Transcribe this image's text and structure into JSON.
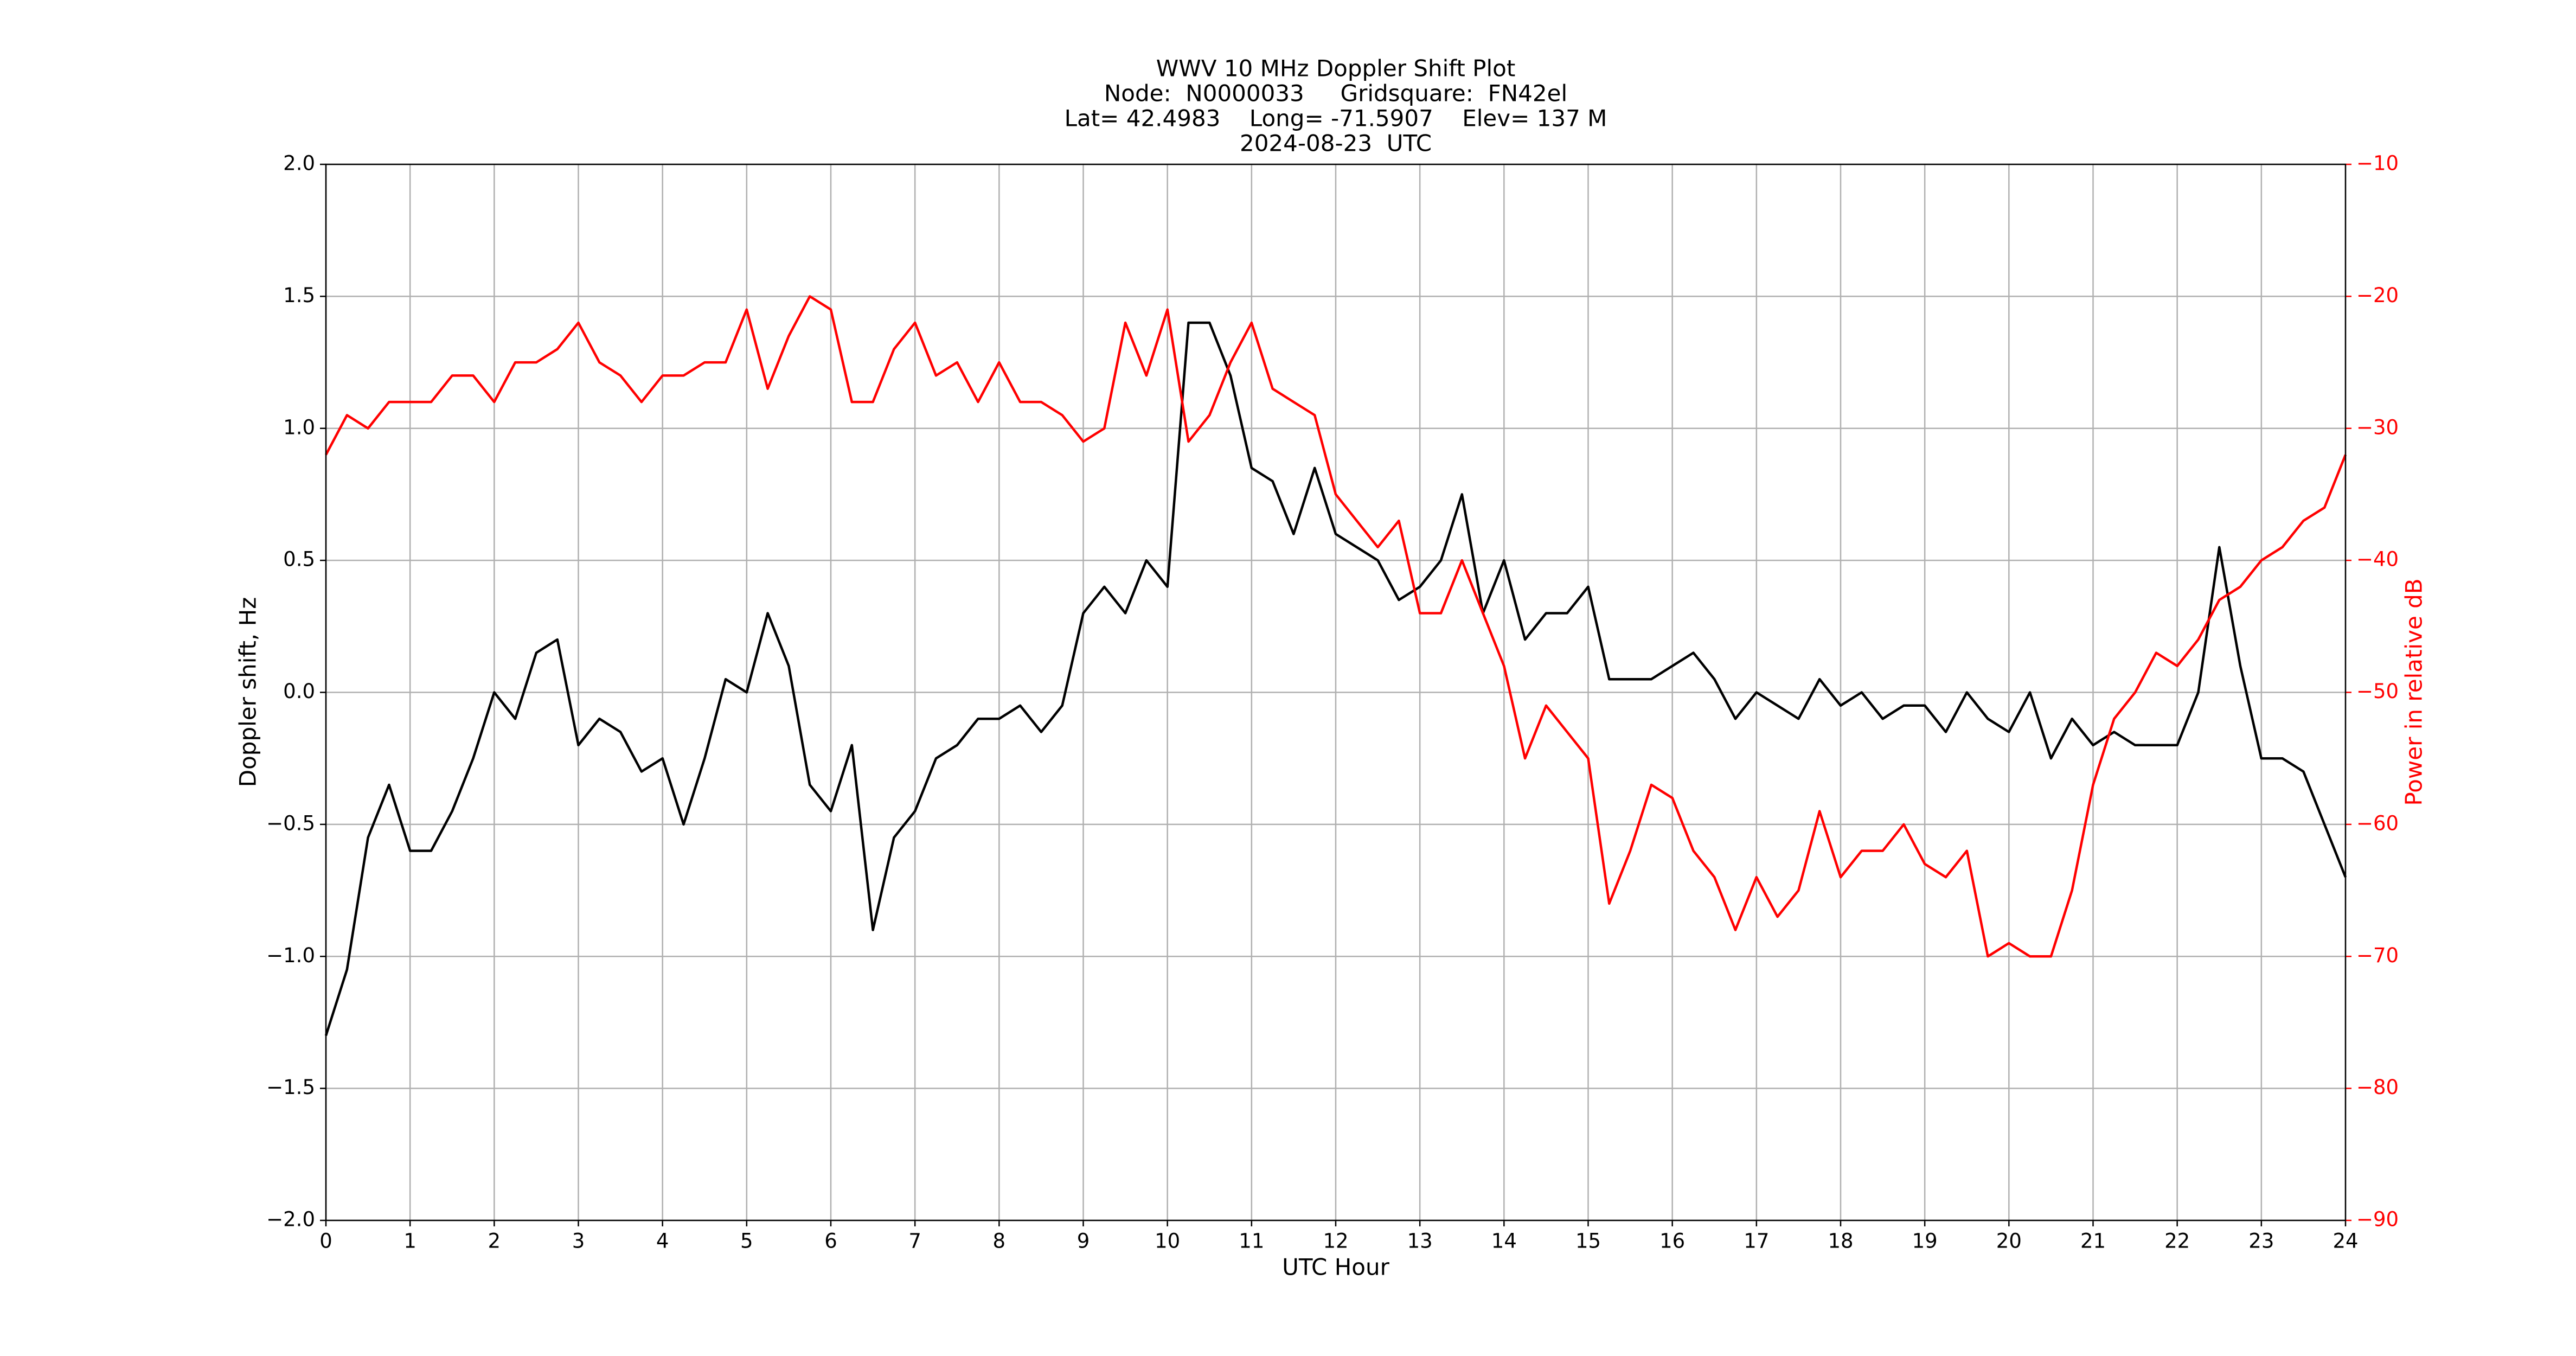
{
  "chart_data": {
    "type": "line",
    "title": [
      "WWV 10 MHz Doppler Shift Plot",
      "Node:  N0000033     Gridsquare:  FN42el",
      "Lat= 42.4983    Long= -71.5907    Elev= 137 M",
      "2024-08-23  UTC"
    ],
    "xlabel": "UTC Hour",
    "ylabel": "Doppler shift, Hz",
    "y2label": "Power in relative dB",
    "x": [
      0,
      0.25,
      0.5,
      0.75,
      1,
      1.25,
      1.5,
      1.75,
      2,
      2.25,
      2.5,
      2.75,
      3,
      3.25,
      3.5,
      3.75,
      4,
      4.25,
      4.5,
      4.75,
      5,
      5.25,
      5.5,
      5.75,
      6,
      6.25,
      6.5,
      6.75,
      7,
      7.25,
      7.5,
      7.75,
      8,
      8.25,
      8.5,
      8.75,
      9,
      9.25,
      9.5,
      9.75,
      10,
      10.25,
      10.5,
      10.75,
      11,
      11.25,
      11.5,
      11.75,
      12,
      12.25,
      12.5,
      12.75,
      13,
      13.25,
      13.5,
      13.75,
      14,
      14.25,
      14.5,
      14.75,
      15,
      15.25,
      15.5,
      15.75,
      16,
      16.25,
      16.5,
      16.75,
      17,
      17.25,
      17.5,
      17.75,
      18,
      18.25,
      18.5,
      18.75,
      19,
      19.25,
      19.5,
      19.75,
      20,
      20.25,
      20.5,
      20.75,
      21,
      21.25,
      21.5,
      21.75,
      22,
      22.25,
      22.5,
      22.75,
      23,
      23.25,
      23.5,
      23.75,
      24
    ],
    "series": [
      {
        "color": "#000000",
        "values": [
          -1.3,
          -1.05,
          -0.55,
          -0.35,
          -0.6,
          -0.6,
          -0.45,
          -0.25,
          0.0,
          -0.1,
          0.15,
          0.2,
          -0.2,
          -0.1,
          -0.15,
          -0.3,
          -0.25,
          -0.5,
          -0.25,
          0.05,
          0.0,
          0.3,
          0.1,
          -0.35,
          -0.45,
          -0.2,
          -0.9,
          -0.55,
          -0.45,
          -0.25,
          -0.2,
          -0.1,
          -0.1,
          -0.05,
          -0.15,
          -0.05,
          0.3,
          0.4,
          0.3,
          0.5,
          0.4,
          1.4,
          1.4,
          1.2,
          0.85,
          0.8,
          0.6,
          0.85,
          0.6,
          0.55,
          0.5,
          0.35,
          0.4,
          0.5,
          0.75,
          0.3,
          0.5,
          0.2,
          0.3,
          0.3,
          0.4,
          0.05,
          0.05,
          0.05,
          0.1,
          0.15,
          0.05,
          -0.1,
          0.0,
          -0.05,
          -0.1,
          0.05,
          -0.05,
          0.0,
          -0.1,
          -0.05,
          -0.05,
          -0.15,
          0.0,
          -0.1,
          -0.15,
          0.0,
          -0.25,
          -0.1,
          -0.2,
          -0.15,
          -0.2,
          -0.2,
          -0.2,
          0.0,
          0.55,
          0.1,
          -0.25,
          -0.25,
          -0.3,
          -0.5,
          -0.7
        ]
      },
      {
        "color": "#ff0000",
        "axis": "y2",
        "values": [
          -32,
          -29,
          -30,
          -28,
          -28,
          -28,
          -26,
          -26,
          -28,
          -25,
          -25,
          -24,
          -22,
          -25,
          -26,
          -28,
          -26,
          -26,
          -25,
          -25,
          -21,
          -27,
          -23,
          -20,
          -21,
          -28,
          -28,
          -24,
          -22,
          -26,
          -25,
          -28,
          -25,
          -28,
          -28,
          -29,
          -31,
          -30,
          -22,
          -26,
          -21,
          -31,
          -29,
          -25,
          -22,
          -27,
          -28,
          -29,
          -35,
          -37,
          -39,
          -37,
          -44,
          -44,
          -40,
          -44,
          -48,
          -55,
          -51,
          -53,
          -55,
          -66,
          -62,
          -57,
          -58,
          -62,
          -64,
          -68,
          -64,
          -67,
          -65,
          -59,
          -64,
          -62,
          -62,
          -60,
          -63,
          -64,
          -62,
          -70,
          -69,
          -70,
          -70,
          -65,
          -57,
          -52,
          -50,
          -47,
          -48,
          -46,
          -43,
          -42,
          -40,
          -39,
          -37,
          -36,
          -32
        ]
      }
    ],
    "xlim": [
      0,
      24
    ],
    "xticks": [
      0,
      1,
      2,
      3,
      4,
      5,
      6,
      7,
      8,
      9,
      10,
      11,
      12,
      13,
      14,
      15,
      16,
      17,
      18,
      19,
      20,
      21,
      22,
      23,
      24
    ],
    "ylim": [
      -2,
      2
    ],
    "yticks": [
      {
        "value": -2,
        "label": "−2.0"
      },
      {
        "value": -1.5,
        "label": "−1.5"
      },
      {
        "value": -1,
        "label": "−1.0"
      },
      {
        "value": -0.5,
        "label": "−0.5"
      },
      {
        "value": 0,
        "label": "0.0"
      },
      0.5,
      {
        "value": 1,
        "label": "1.0"
      },
      1.5,
      {
        "value": 2,
        "label": "2.0"
      }
    ],
    "y2lim": [
      -90,
      -10
    ],
    "y2ticks": [
      {
        "value": -90,
        "label": "−90"
      },
      {
        "value": -80,
        "label": "−80"
      },
      {
        "value": -70,
        "label": "−70"
      },
      {
        "value": -60,
        "label": "−60"
      },
      {
        "value": -50,
        "label": "−50"
      },
      {
        "value": -40,
        "label": "−40"
      },
      {
        "value": -30,
        "label": "−30"
      },
      {
        "value": -20,
        "label": "−20"
      },
      {
        "value": -10,
        "label": "−10"
      }
    ],
    "y2color": "#ff0000",
    "grid": true
  }
}
